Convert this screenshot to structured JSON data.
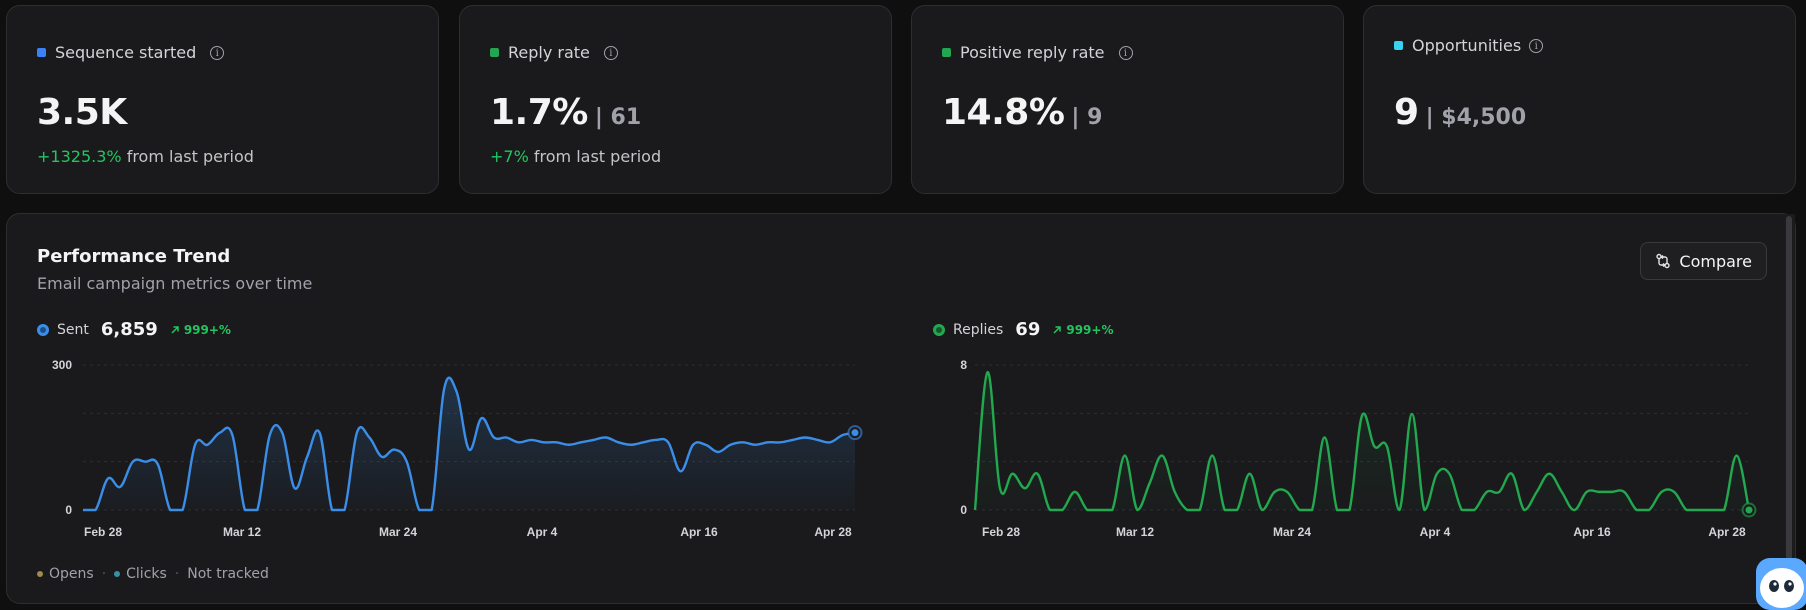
{
  "stats": [
    {
      "label": "Sequence started",
      "color": "#3b82f6",
      "value": "3.5K",
      "secondary": "",
      "delta": "+1325.3%",
      "delta_suffix": "from last period"
    },
    {
      "label": "Reply rate",
      "color": "#22a652",
      "value": "1.7%",
      "secondary": "| 61",
      "delta": "+7%",
      "delta_suffix": "from last period"
    },
    {
      "label": "Positive reply rate",
      "color": "#22a652",
      "value": "14.8%",
      "secondary": "| 9",
      "delta": "",
      "delta_suffix": ""
    },
    {
      "label": "Opportunities",
      "color": "#38d3f0",
      "value": "9",
      "secondary": "| $4,500",
      "delta": "",
      "delta_suffix": ""
    }
  ],
  "performance": {
    "title": "Performance Trend",
    "subtitle": "Email campaign metrics over time",
    "compare_label": "Compare",
    "legend": {
      "opens": "Opens",
      "clicks": "Clicks",
      "sep": "·",
      "not_tracked": "Not tracked"
    }
  },
  "chart_data": [
    {
      "type": "area",
      "series": [
        {
          "name": "Sent",
          "color": "#3b8ee8"
        }
      ],
      "header_value": "6,859",
      "header_delta": "999+%",
      "x_tick_labels": [
        "Feb  28",
        "Mar  12",
        "Mar  24",
        "Apr  4",
        "Apr  16",
        "Apr  28"
      ],
      "y_tick_labels": [
        "300",
        "0"
      ],
      "ylim": [
        0,
        300
      ],
      "grid": true,
      "x": [
        "Feb 26",
        "Feb 27",
        "Feb 28",
        "Mar 1",
        "Mar 2",
        "Mar 3",
        "Mar 4",
        "Mar 5",
        "Mar 6",
        "Mar 7",
        "Mar 8",
        "Mar 9",
        "Mar 10",
        "Mar 11",
        "Mar 12",
        "Mar 13",
        "Mar 14",
        "Mar 15",
        "Mar 16",
        "Mar 17",
        "Mar 18",
        "Mar 19",
        "Mar 20",
        "Mar 21",
        "Mar 22",
        "Mar 23",
        "Mar 24",
        "Mar 25",
        "Mar 26",
        "Mar 27",
        "Mar 28",
        "Mar 29",
        "Mar 30",
        "Mar 31",
        "Apr 1",
        "Apr 2",
        "Apr 3",
        "Apr 4",
        "Apr 5",
        "Apr 6",
        "Apr 7",
        "Apr 8",
        "Apr 9",
        "Apr 10",
        "Apr 11",
        "Apr 12",
        "Apr 13",
        "Apr 14",
        "Apr 15",
        "Apr 16",
        "Apr 17",
        "Apr 18",
        "Apr 19",
        "Apr 20",
        "Apr 21",
        "Apr 22",
        "Apr 23",
        "Apr 24",
        "Apr 25",
        "Apr 26",
        "Apr 27",
        "Apr 28",
        "Apr 29"
      ],
      "values": [
        0,
        0,
        65,
        48,
        100,
        100,
        95,
        0,
        0,
        135,
        135,
        160,
        155,
        0,
        0,
        155,
        160,
        45,
        110,
        160,
        0,
        0,
        160,
        150,
        110,
        125,
        100,
        0,
        0,
        250,
        245,
        125,
        190,
        150,
        150,
        140,
        145,
        140,
        140,
        135,
        140,
        145,
        150,
        140,
        135,
        140,
        145,
        140,
        80,
        135,
        135,
        120,
        135,
        140,
        135,
        140,
        140,
        145,
        150,
        145,
        140,
        155,
        160
      ]
    },
    {
      "type": "area",
      "series": [
        {
          "name": "Replies",
          "color": "#22a84e"
        }
      ],
      "header_value": "69",
      "header_delta": "999+%",
      "x_tick_labels": [
        "Feb  28",
        "Mar  12",
        "Mar  24",
        "Apr  4",
        "Apr  16",
        "Apr  28"
      ],
      "y_tick_labels": [
        "8",
        "0"
      ],
      "ylim": [
        0,
        8
      ],
      "grid": true,
      "x": [
        "Feb 26",
        "Feb 27",
        "Feb 28",
        "Mar 1",
        "Mar 2",
        "Mar 3",
        "Mar 4",
        "Mar 5",
        "Mar 6",
        "Mar 7",
        "Mar 8",
        "Mar 9",
        "Mar 10",
        "Mar 11",
        "Mar 12",
        "Mar 13",
        "Mar 14",
        "Mar 15",
        "Mar 16",
        "Mar 17",
        "Mar 18",
        "Mar 19",
        "Mar 20",
        "Mar 21",
        "Mar 22",
        "Mar 23",
        "Mar 24",
        "Mar 25",
        "Mar 26",
        "Mar 27",
        "Mar 28",
        "Mar 29",
        "Mar 30",
        "Mar 31",
        "Apr 1",
        "Apr 2",
        "Apr 3",
        "Apr 4",
        "Apr 5",
        "Apr 6",
        "Apr 7",
        "Apr 8",
        "Apr 9",
        "Apr 10",
        "Apr 11",
        "Apr 12",
        "Apr 13",
        "Apr 14",
        "Apr 15",
        "Apr 16",
        "Apr 17",
        "Apr 18",
        "Apr 19",
        "Apr 20",
        "Apr 21",
        "Apr 22",
        "Apr 23",
        "Apr 24",
        "Apr 25",
        "Apr 26",
        "Apr 27",
        "Apr 28",
        "Apr 29"
      ],
      "values": [
        0,
        7.6,
        1.2,
        2,
        1.2,
        2,
        0,
        0,
        1,
        0,
        0,
        0,
        3,
        0,
        1.5,
        3,
        1,
        0,
        0,
        3,
        0,
        0,
        2,
        0,
        1,
        1,
        0,
        0,
        4,
        0,
        0,
        5.2,
        3.5,
        3.5,
        0,
        5.3,
        0,
        2,
        2,
        0,
        0,
        1,
        1,
        2,
        0,
        1,
        2,
        1,
        0,
        1,
        1,
        1,
        1,
        0,
        0,
        1,
        1,
        0,
        0,
        0,
        0,
        3,
        0
      ]
    }
  ]
}
